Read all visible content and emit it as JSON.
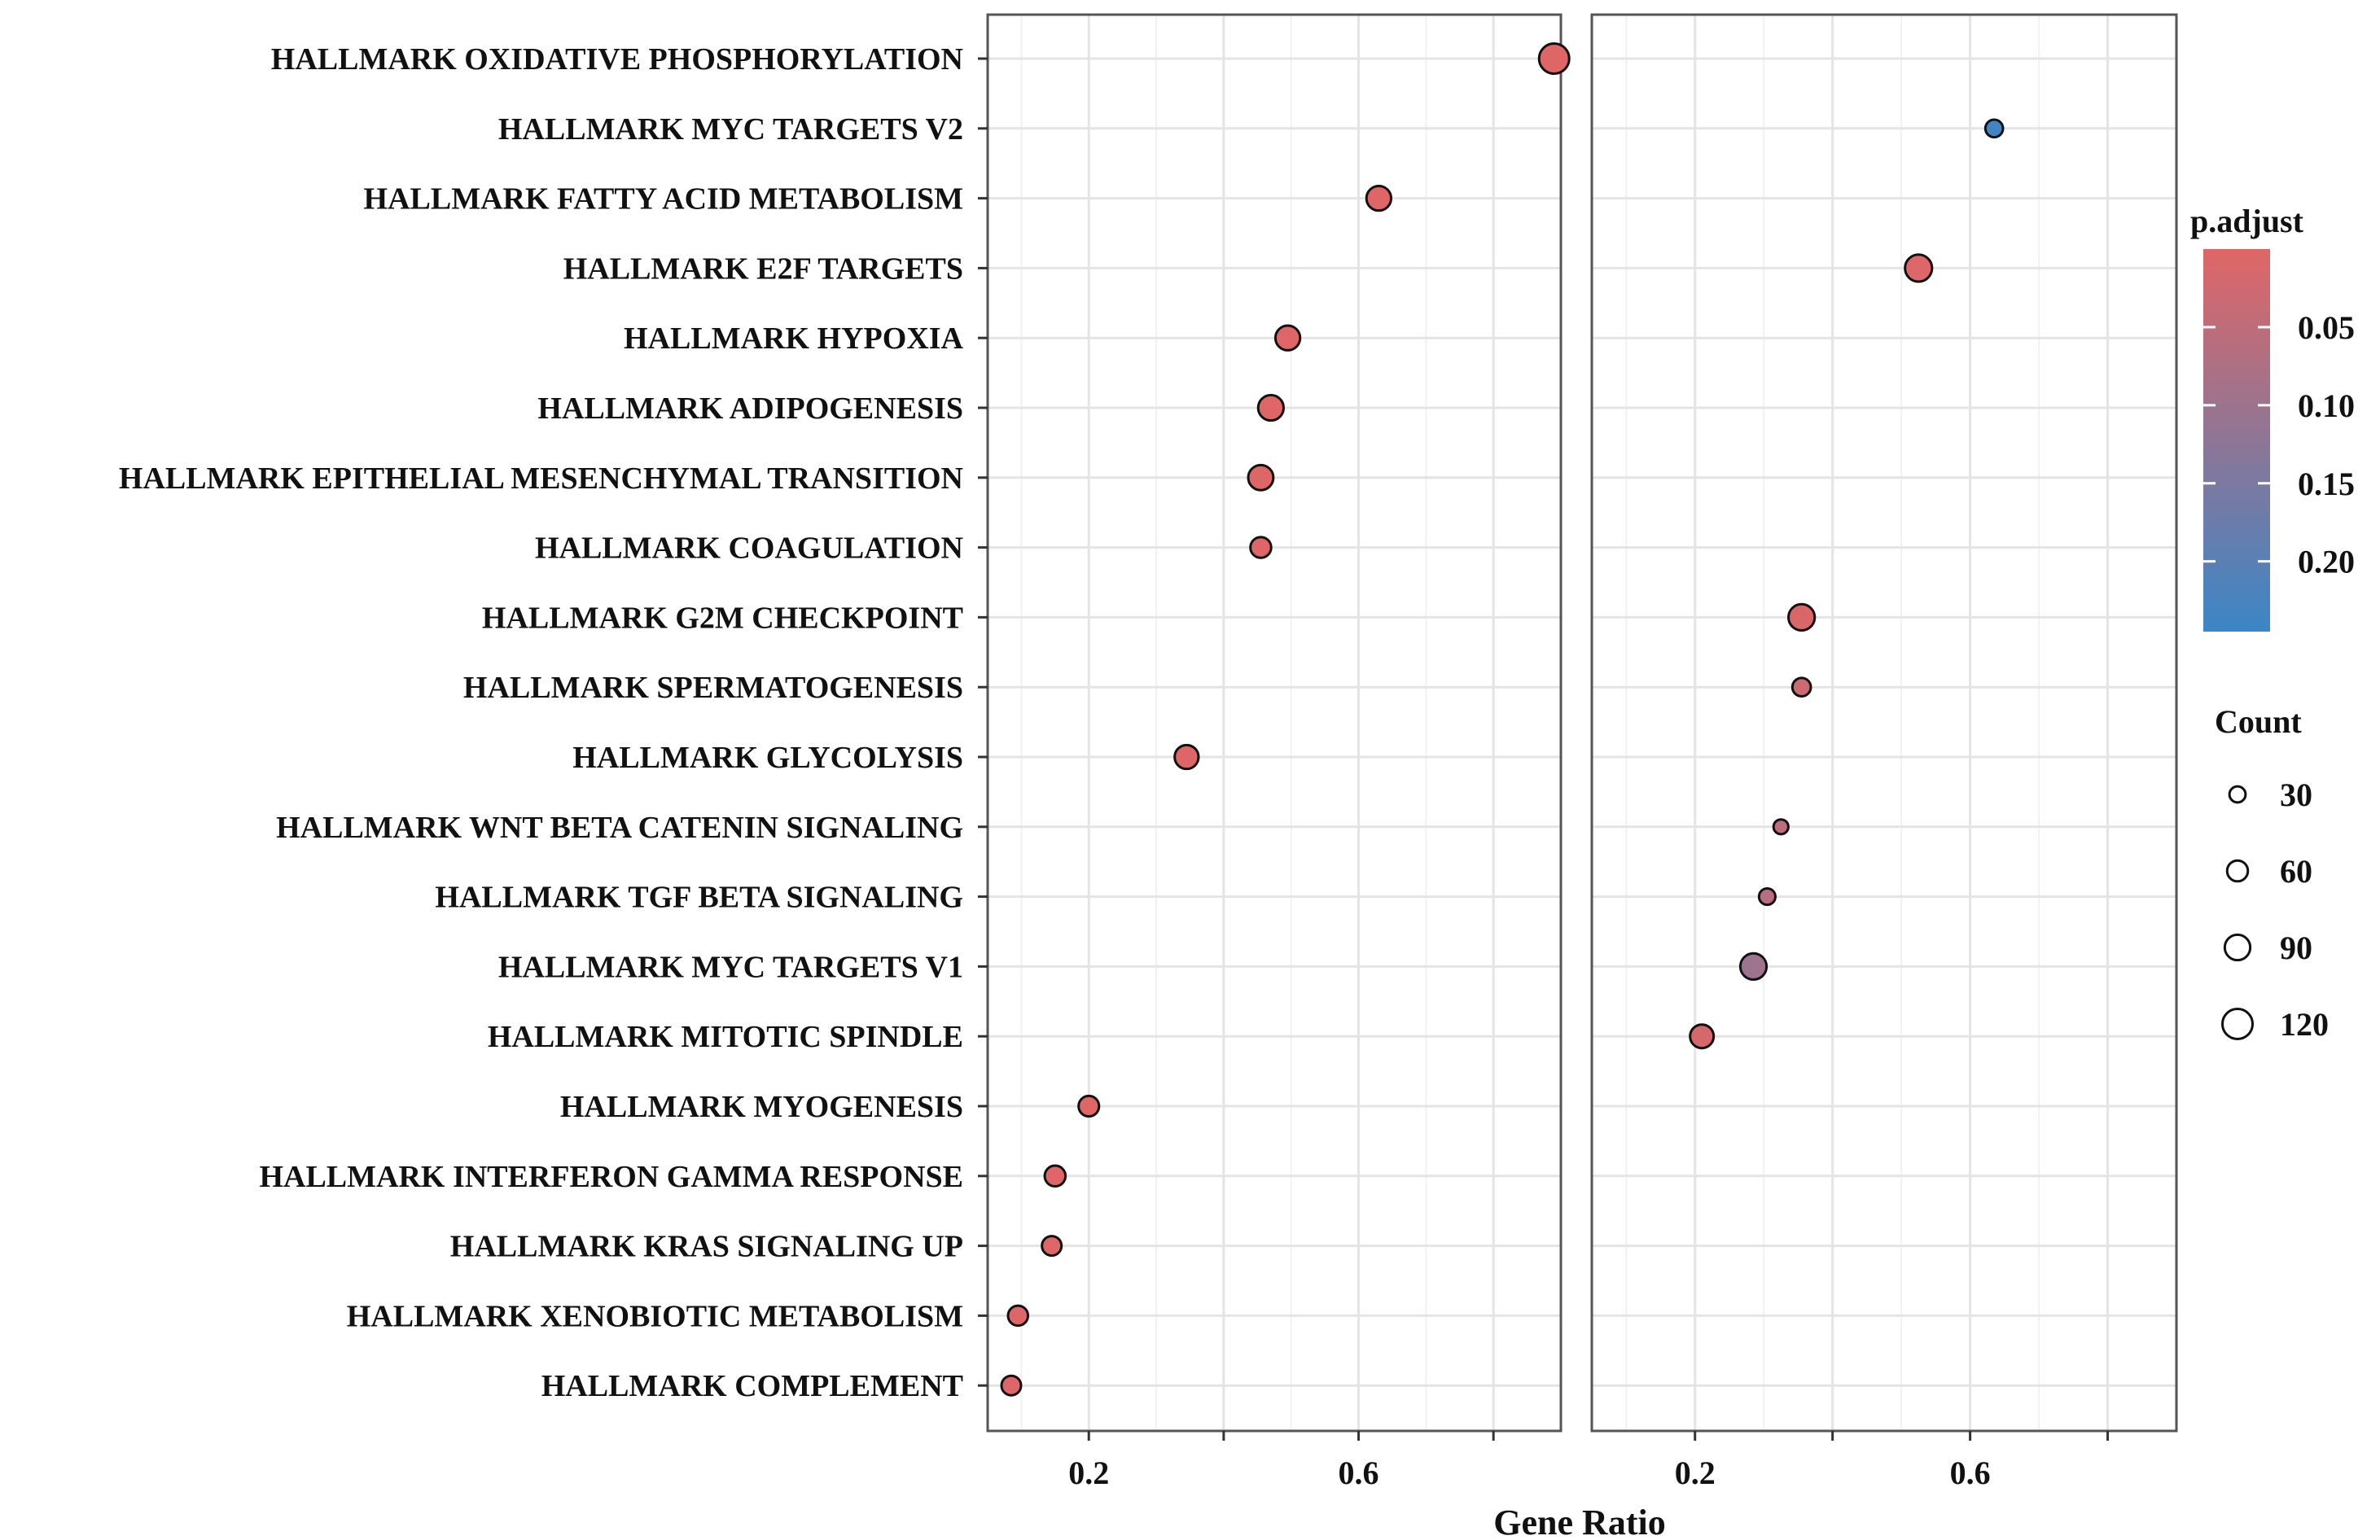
{
  "chart_data": {
    "type": "scatter",
    "xlabel": "Gene Ratio",
    "xlim": [
      0.05,
      0.9
    ],
    "xticks": [
      0.2,
      0.6
    ],
    "xticks_display": [
      "0.2",
      "0.6"
    ],
    "categories": [
      "HALLMARK OXIDATIVE PHOSPHORYLATION",
      "HALLMARK MYC TARGETS V2",
      "HALLMARK FATTY ACID METABOLISM",
      "HALLMARK E2F TARGETS",
      "HALLMARK HYPOXIA",
      "HALLMARK ADIPOGENESIS",
      "HALLMARK EPITHELIAL MESENCHYMAL TRANSITION",
      "HALLMARK COAGULATION",
      "HALLMARK G2M CHECKPOINT",
      "HALLMARK SPERMATOGENESIS",
      "HALLMARK GLYCOLYSIS",
      "HALLMARK WNT BETA CATENIN SIGNALING",
      "HALLMARK TGF BETA SIGNALING",
      "HALLMARK MYC TARGETS V1",
      "HALLMARK MITOTIC SPINDLE",
      "HALLMARK MYOGENESIS",
      "HALLMARK INTERFERON GAMMA RESPONSE",
      "HALLMARK KRAS SIGNALING UP",
      "HALLMARK XENOBIOTIC METABOLISM",
      "HALLMARK COMPLEMENT"
    ],
    "panels": [
      {
        "points": [
          {
            "category": "HALLMARK OXIDATIVE PHOSPHORYLATION",
            "gene_ratio": 0.89,
            "count": 120,
            "p_adjust": 0.001
          },
          {
            "category": "HALLMARK FATTY ACID METABOLISM",
            "gene_ratio": 0.63,
            "count": 85,
            "p_adjust": 0.001
          },
          {
            "category": "HALLMARK HYPOXIA",
            "gene_ratio": 0.495,
            "count": 85,
            "p_adjust": 0.001
          },
          {
            "category": "HALLMARK ADIPOGENESIS",
            "gene_ratio": 0.47,
            "count": 90,
            "p_adjust": 0.001
          },
          {
            "category": "HALLMARK EPITHELIAL MESENCHYMAL TRANSITION",
            "gene_ratio": 0.455,
            "count": 88,
            "p_adjust": 0.001
          },
          {
            "category": "HALLMARK COAGULATION",
            "gene_ratio": 0.455,
            "count": 60,
            "p_adjust": 0.002
          },
          {
            "category": "HALLMARK GLYCOLYSIS",
            "gene_ratio": 0.345,
            "count": 80,
            "p_adjust": 0.002
          },
          {
            "category": "HALLMARK MYOGENESIS",
            "gene_ratio": 0.2,
            "count": 58,
            "p_adjust": 0.003
          },
          {
            "category": "HALLMARK INTERFERON GAMMA RESPONSE",
            "gene_ratio": 0.15,
            "count": 60,
            "p_adjust": 0.003
          },
          {
            "category": "HALLMARK KRAS SIGNALING UP",
            "gene_ratio": 0.145,
            "count": 52,
            "p_adjust": 0.003
          },
          {
            "category": "HALLMARK XENOBIOTIC METABOLISM",
            "gene_ratio": 0.095,
            "count": 55,
            "p_adjust": 0.004
          },
          {
            "category": "HALLMARK COMPLEMENT",
            "gene_ratio": 0.085,
            "count": 52,
            "p_adjust": 0.004
          }
        ]
      },
      {
        "points": [
          {
            "category": "HALLMARK MYC TARGETS V2",
            "gene_ratio": 0.635,
            "count": 40,
            "p_adjust": 0.235
          },
          {
            "category": "HALLMARK E2F TARGETS",
            "gene_ratio": 0.525,
            "count": 100,
            "p_adjust": 0.005
          },
          {
            "category": "HALLMARK G2M CHECKPOINT",
            "gene_ratio": 0.355,
            "count": 95,
            "p_adjust": 0.01
          },
          {
            "category": "HALLMARK SPERMATOGENESIS",
            "gene_ratio": 0.355,
            "count": 45,
            "p_adjust": 0.03
          },
          {
            "category": "HALLMARK WNT BETA CATENIN SIGNALING",
            "gene_ratio": 0.325,
            "count": 22,
            "p_adjust": 0.05
          },
          {
            "category": "HALLMARK TGF BETA SIGNALING",
            "gene_ratio": 0.305,
            "count": 32,
            "p_adjust": 0.06
          },
          {
            "category": "HALLMARK MYC TARGETS V1",
            "gene_ratio": 0.285,
            "count": 95,
            "p_adjust": 0.1
          },
          {
            "category": "HALLMARK MITOTIC SPINDLE",
            "gene_ratio": 0.21,
            "count": 78,
            "p_adjust": 0.015
          }
        ]
      }
    ],
    "color_legend": {
      "title": "p.adjust",
      "range": [
        0.0,
        0.245
      ],
      "ticks": [
        0.05,
        0.1,
        0.15,
        0.2
      ],
      "tick_labels": [
        "0.05",
        "0.10",
        "0.15",
        "0.20"
      ],
      "low_color": "#e06666",
      "high_color": "#3b86c6"
    },
    "size_legend": {
      "title": "Count",
      "values": [
        30,
        60,
        90,
        120
      ],
      "labels": [
        "30",
        "60",
        "90",
        "120"
      ]
    },
    "grid": true,
    "legend_position": "right"
  }
}
